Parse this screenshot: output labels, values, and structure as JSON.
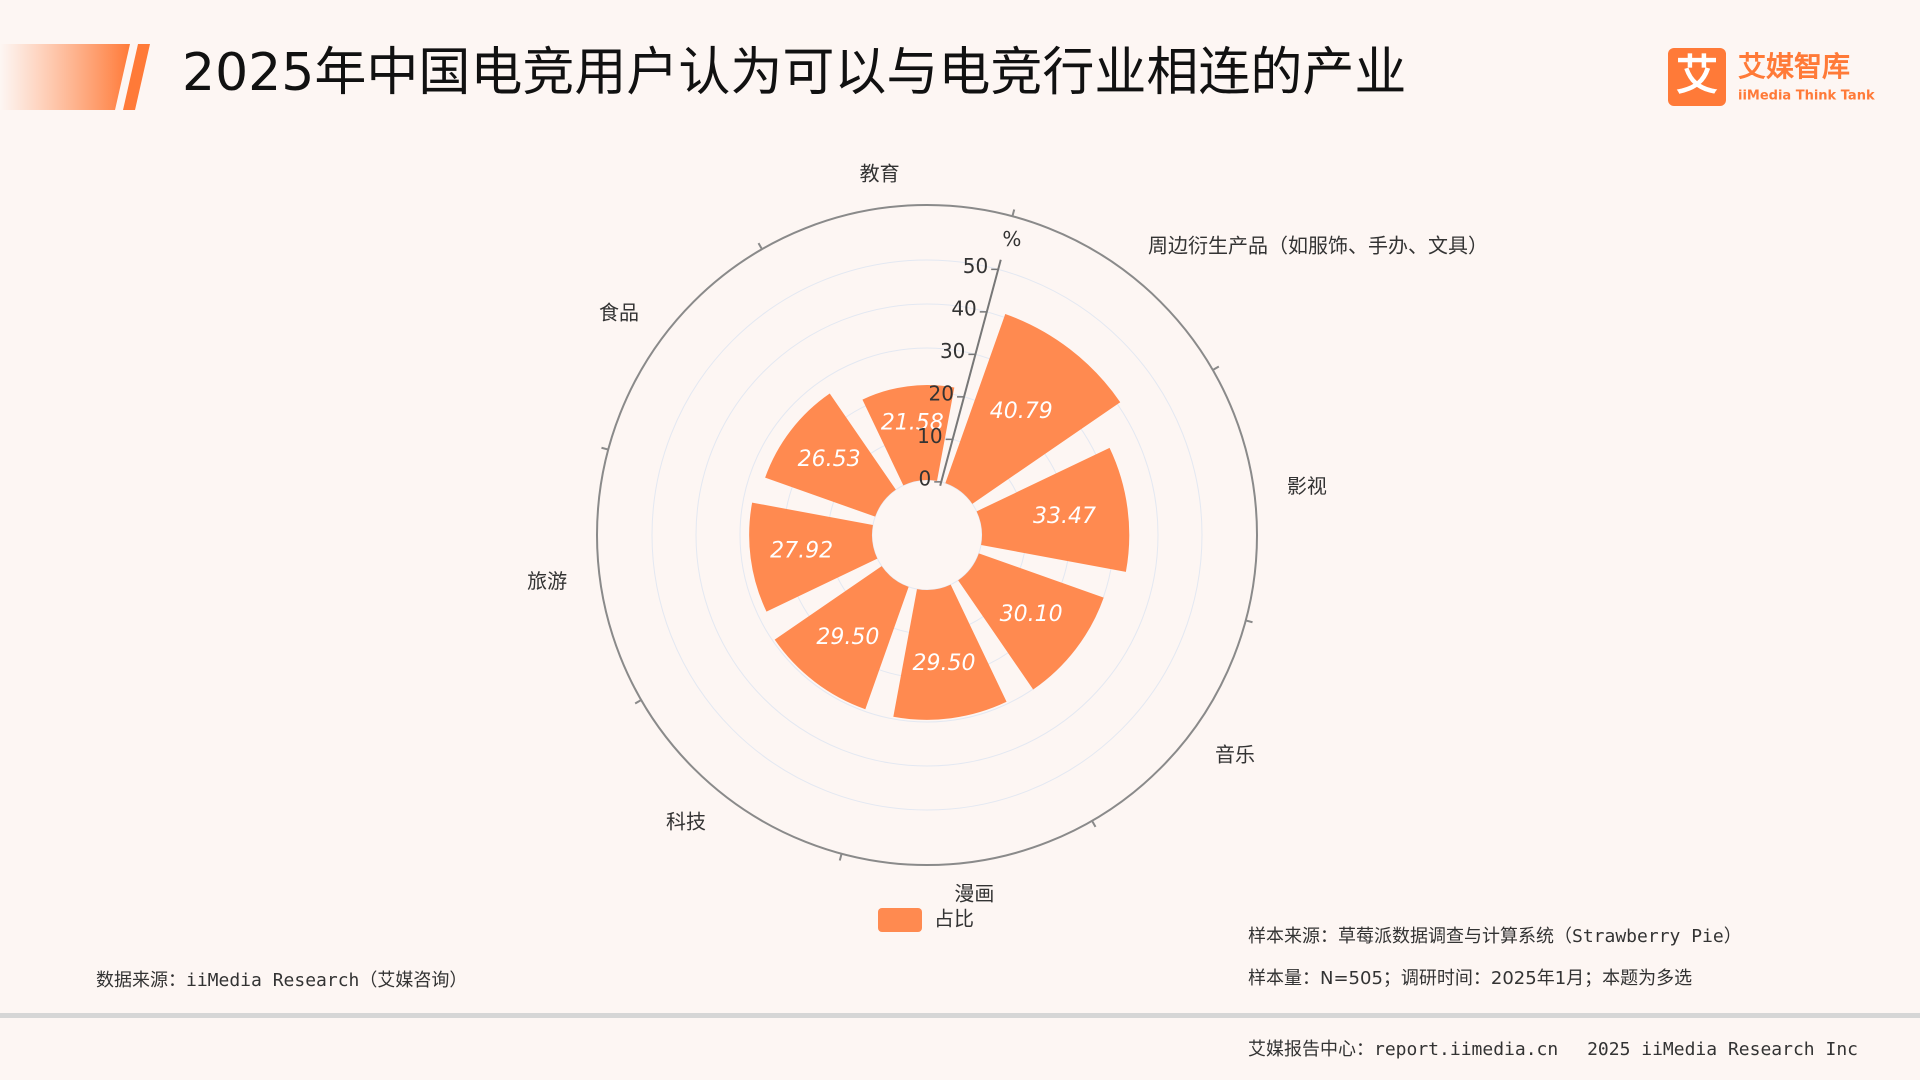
{
  "header": {
    "title": "2025年中国电竞用户认为可以与电竞行业相连的产业",
    "logo_name": "艾媒智库",
    "logo_sub": "iiMedia Think Tank",
    "logo_icon": "艾"
  },
  "chart_data": {
    "type": "polar_bar",
    "categories": [
      "周边衍生产品（如服饰、手办、文具）",
      "影视",
      "音乐",
      "漫画",
      "科技",
      "旅游",
      "食品",
      "教育"
    ],
    "series": [
      {
        "name": "占比",
        "color": "#ff8a50",
        "values": [
          40.79,
          33.47,
          30.1,
          29.5,
          29.5,
          27.92,
          26.53,
          21.58
        ],
        "value_labels": [
          "40.79",
          "33.47",
          "30.10",
          "29.50",
          "29.50",
          "27.92",
          "26.53",
          "21.58"
        ]
      }
    ],
    "ylim": [
      0,
      50
    ],
    "yticks": [
      0,
      10,
      20,
      30,
      40,
      50
    ],
    "y_unit": "%",
    "grid": true
  },
  "sources": {
    "left": "数据来源：iiMedia Research（艾媒咨询）",
    "sample_source": "样本来源：草莓派数据调查与计算系统（Strawberry Pie）",
    "sample_size": "样本量：N=505；调研时间：2025年1月；本题为多选"
  },
  "footer": "艾媒报告中心：report.iimedia.cn　 2025 iiMedia Research Inc"
}
